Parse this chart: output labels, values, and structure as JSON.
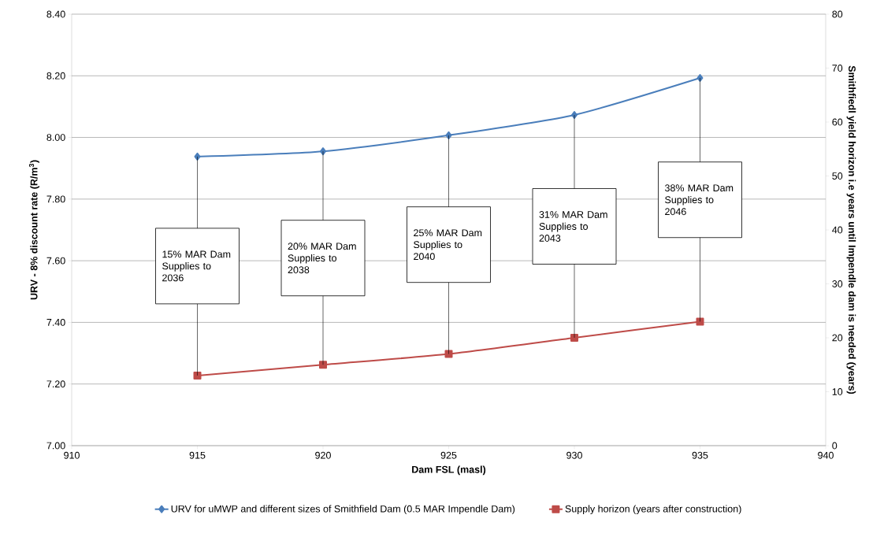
{
  "chart_data": {
    "type": "line",
    "xlabel": "Dam FSL (masl)",
    "ylabel": "URV - 8% discount rate (R/m$^{3}$)",
    "y2label": "Smithfiedl yield horizon i.e years until Impendle dam is needed (years)",
    "x": [
      915,
      920,
      925,
      930,
      935
    ],
    "series": [
      {
        "name": "URV for uMWP and different sizes of Smithfield Dam (0.5  MAR Impendle Dam)",
        "color": "#4a7ebb",
        "marker": "diamond",
        "values": [
          7.938,
          7.955,
          8.007,
          8.073,
          8.193
        ]
      },
      {
        "name": "Supply horizon (years after construction)",
        "color": "#be4b48",
        "marker": "square",
        "axis": "y2",
        "values": [
          13,
          15,
          17,
          20,
          23
        ]
      }
    ],
    "xlim": [
      910,
      940
    ],
    "xticks": [
      910,
      915,
      920,
      925,
      930,
      935,
      940
    ],
    "ylim": [
      7.0,
      8.4
    ],
    "yticks": [
      {
        "value": 7.0,
        "label": "7.00"
      },
      {
        "value": 7.2,
        "label": "7.20"
      },
      {
        "value": 7.4,
        "label": "7.40"
      },
      {
        "value": 7.6,
        "label": "7.60"
      },
      {
        "value": 7.8,
        "label": "7.80"
      },
      {
        "value": 8.0,
        "label": "8.00"
      },
      {
        "value": 8.2,
        "label": "8.20"
      },
      {
        "value": 8.4,
        "label": "8.40"
      }
    ],
    "y2lim": [
      0,
      80
    ],
    "y2ticks": [
      0,
      10,
      20,
      30,
      40,
      50,
      60,
      70,
      80
    ],
    "annotations": [
      {
        "text": "15% MAR Dam Supplies to 2036",
        "x": 915,
        "y": 7.938
      },
      {
        "text": "20% MAR Dam Supplies to 2038",
        "x": 920,
        "y": 7.955
      },
      {
        "text": "25% MAR Dam Supplies to 2040",
        "x": 925,
        "y": 8.007
      },
      {
        "text": "31% MAR Dam Supplies to 2043",
        "x": 930,
        "y": 8.073
      },
      {
        "text": "38% MAR Dam Supplies to 2046",
        "x": 935,
        "y": 8.193
      }
    ],
    "grid": "y",
    "legend": "bottom"
  }
}
